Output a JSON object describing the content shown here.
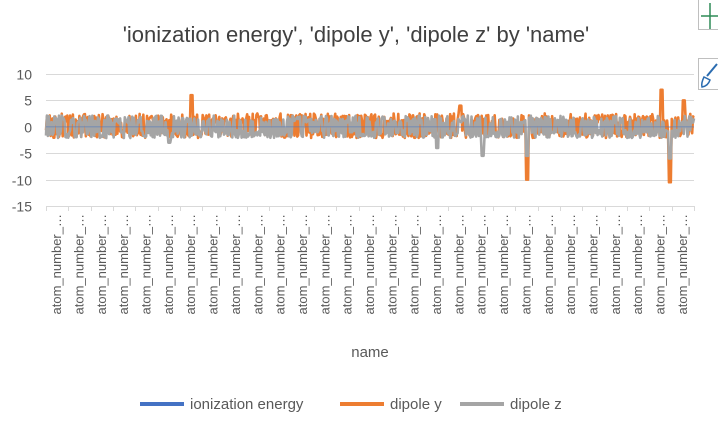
{
  "chart_data": {
    "type": "line",
    "title": "'ionization energy', 'dipole y', 'dipole z' by 'name'",
    "xlabel": "name",
    "ylabel": "",
    "ylim": [
      -15,
      10
    ],
    "yticks": [
      10,
      5,
      0,
      -5,
      -10,
      -15
    ],
    "grid": true,
    "legend": "bottom",
    "category_label": "atom_number_…",
    "category_label_count": 29,
    "series": [
      {
        "name": "ionization energy",
        "color": "#4472c4"
      },
      {
        "name": "dipole y",
        "color": "#ed7d31"
      },
      {
        "name": "dipole z",
        "color": "#a5a5a5"
      }
    ],
    "visible_values": {
      "dipole y": {
        "typical_range": [
          -2.5,
          3
        ],
        "spikes": [
          {
            "category_index": 6,
            "value": 6
          },
          {
            "category_index": 18,
            "value": 4
          },
          {
            "category_index": 21,
            "value": -10
          },
          {
            "category_index": 27,
            "value": 7
          },
          {
            "category_index": 27.4,
            "value": -10.5
          },
          {
            "category_index": 28,
            "value": 5
          }
        ]
      },
      "dipole z": {
        "typical_range": [
          -2.5,
          2.5
        ],
        "spikes": [
          {
            "category_index": 5,
            "value": -3
          },
          {
            "category_index": 17,
            "value": -4
          },
          {
            "category_index": 19,
            "value": -5.5
          },
          {
            "category_index": 21,
            "value": -5.5
          },
          {
            "category_index": 27.4,
            "value": -6
          }
        ]
      },
      "ionization energy": {
        "typical_range": [
          0,
          0
        ]
      }
    }
  },
  "side_tools": [
    {
      "name": "add-chart-element",
      "icon": "plus-icon",
      "color": "#2e8b57"
    },
    {
      "name": "chart-styles",
      "icon": "brush-icon",
      "color": "#2b6cb0"
    }
  ]
}
